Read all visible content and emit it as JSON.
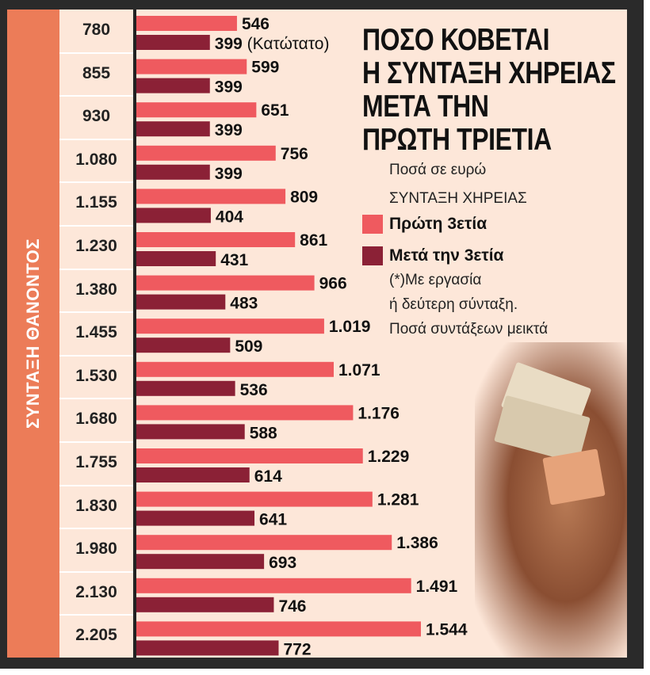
{
  "chart_data": {
    "type": "bar",
    "orientation": "horizontal",
    "title_lines": [
      "ΠΟΣΟ ΚΟΒΕΤΑΙ",
      "Η ΣΥΝΤΑΞΗ ΧΗΡΕΙΑΣ",
      "ΜΕΤΑ ΤΗΝ",
      "ΠΡΩΤΗ ΤΡΙΕΤΙΑ"
    ],
    "units_text": "Ποσά σε ευρώ",
    "subtitle": "ΣΥΝΤΑΞΗ ΧΗΡΕΙΑΣ",
    "ylabel": "ΣΥΝΤΑΞΗ ΘΑΝΟΝΤΟΣ",
    "categories": [
      "780",
      "855",
      "930",
      "1.080",
      "1.155",
      "1.230",
      "1.380",
      "1.455",
      "1.530",
      "1.680",
      "1.755",
      "1.830",
      "1.980",
      "2.130",
      "2.205"
    ],
    "series": [
      {
        "name": "Πρώτη 3ετία",
        "color": "#ef5a5f",
        "values": [
          546,
          599,
          651,
          756,
          809,
          861,
          966,
          1019,
          1071,
          1176,
          1229,
          1281,
          1386,
          1491,
          1544
        ],
        "labels": [
          "546",
          "599",
          "651",
          "756",
          "809",
          "861",
          "966",
          "1.019",
          "1.071",
          "1.176",
          "1.229",
          "1.281",
          "1.386",
          "1.491",
          "1.544"
        ]
      },
      {
        "name": "Μετά την 3ετία",
        "color": "#8b2136",
        "values": [
          399,
          399,
          399,
          399,
          404,
          431,
          483,
          509,
          536,
          588,
          614,
          641,
          693,
          746,
          772
        ],
        "labels": [
          "399 (Κατώτατο)",
          "399",
          "399",
          "399",
          "404",
          "431",
          "483",
          "509",
          "536",
          "588",
          "614",
          "641",
          "693",
          "746",
          "772"
        ]
      }
    ],
    "notes": [
      "(*)Με εργασία",
      "ή δεύτερη σύνταξη.",
      "Ποσά συντάξεων μεικτά"
    ],
    "grid": false,
    "legend_position": "right"
  }
}
